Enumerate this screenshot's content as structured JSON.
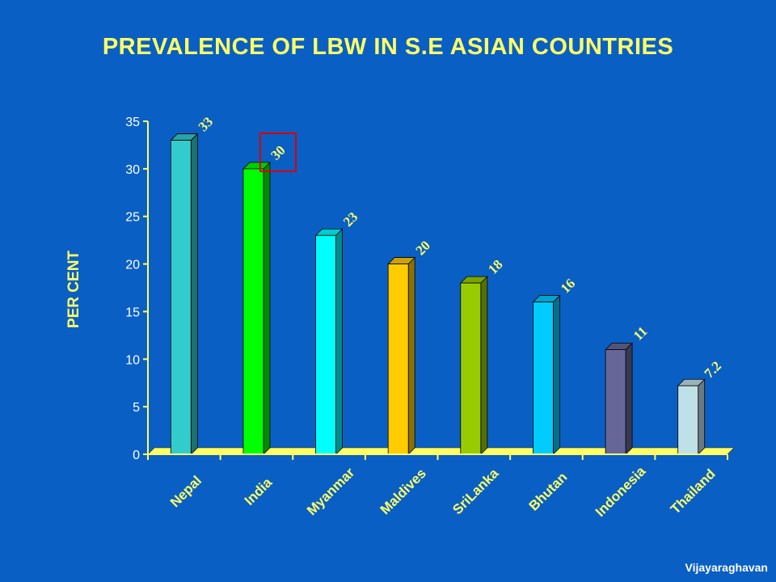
{
  "slide": {
    "title": "PREVALENCE OF LBW IN S.E ASIAN COUNTRIES",
    "author": "Vijayaraghavan"
  },
  "colors": {
    "background": "#0a5fc4",
    "title": "#ffff66",
    "axis": "#ffff66",
    "tick_text": "#ffffff",
    "data_label": "#ffff66",
    "highlight_box": "#e00000"
  },
  "chart_data": {
    "type": "bar",
    "title": "",
    "xlabel": "",
    "ylabel": "PER CENT",
    "ylim": [
      0,
      35
    ],
    "yticks": [
      0,
      5,
      10,
      15,
      20,
      25,
      30,
      35
    ],
    "grid": false,
    "legend": "none",
    "categories": [
      "Nepal",
      "India",
      "Myanmar",
      "Maldives",
      "SriLanka",
      "Bhutan",
      "Indonesia",
      "Thailand"
    ],
    "values": [
      33,
      30,
      23,
      20,
      18,
      16,
      11,
      7.2
    ],
    "data_labels": [
      "33",
      "30",
      "23",
      "20",
      "18",
      "16",
      "11",
      "7.2"
    ],
    "bar_colors": [
      "#33cccc",
      "#00ff00",
      "#00ffff",
      "#ffcc00",
      "#99cc00",
      "#00ccff",
      "#666699",
      "#c0e0e8"
    ],
    "highlighted_category": "India"
  }
}
